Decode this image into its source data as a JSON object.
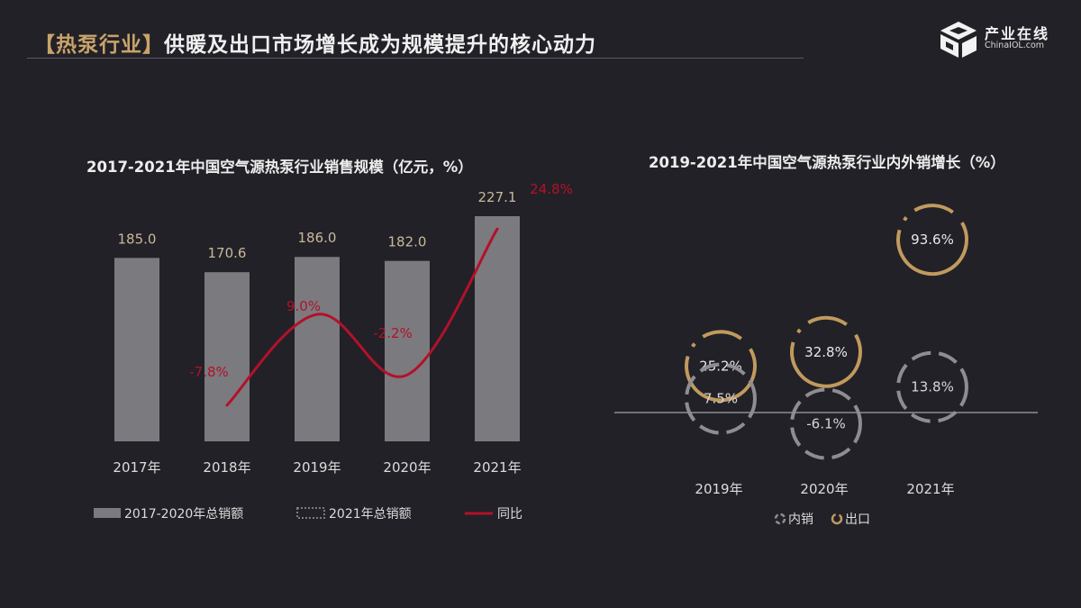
{
  "header": {
    "tag": "【热泵行业】",
    "title": "供暖及出口市场增长成为规模提升的核心动力"
  },
  "logo": {
    "name_cn": "产业在线",
    "name_en": "ChinaIOL.com"
  },
  "colors": {
    "background": "#222127",
    "bar": "#7b7a7f",
    "line": "#b3112a",
    "value_label": "#c9b89c",
    "domestic_ring": "#8e8d92",
    "export_ring": "#c09a5e",
    "baseline": "#8e8d92"
  },
  "chart_data": [
    {
      "type": "bar",
      "title": "2017-2021年中国空气源热泵行业销售规模（亿元，%）",
      "categories": [
        "2017年",
        "2018年",
        "2019年",
        "2020年",
        "2021年"
      ],
      "series": [
        {
          "name": "2017-2020年总销额",
          "type": "bar",
          "values": [
            185.0,
            170.6,
            186.0,
            182.0,
            null
          ],
          "labels": [
            "185.0",
            "170.6",
            "186.0",
            "182.0",
            ""
          ]
        },
        {
          "name": "2021年总销额",
          "type": "bar",
          "values": [
            null,
            null,
            null,
            null,
            227.1
          ],
          "labels": [
            "",
            "",
            "",
            "",
            "227.1"
          ]
        },
        {
          "name": "同比",
          "type": "line",
          "values": [
            null,
            -7.8,
            9.0,
            -2.2,
            24.8
          ],
          "labels": [
            "",
            "-7.8%",
            "9.0%",
            "-2.2%",
            "24.8%"
          ]
        }
      ],
      "ylim": [
        0,
        250
      ],
      "y2lim": [
        -12,
        28
      ],
      "legend_position": "bottom"
    },
    {
      "type": "bubble",
      "title": "2019-2021年中国空气源热泵行业内外销增长（%）",
      "categories": [
        "2019年",
        "2020年",
        "2021年"
      ],
      "series": [
        {
          "name": "内销",
          "values": [
            7.5,
            -6.1,
            13.8
          ],
          "labels": [
            "7.5%",
            "-6.1%",
            "13.8%"
          ]
        },
        {
          "name": "出口",
          "values": [
            25.2,
            32.8,
            93.6
          ],
          "labels": [
            "25.2%",
            "32.8%",
            "93.6%"
          ]
        }
      ],
      "ylim": [
        -15,
        100
      ],
      "legend_position": "bottom-center"
    }
  ]
}
